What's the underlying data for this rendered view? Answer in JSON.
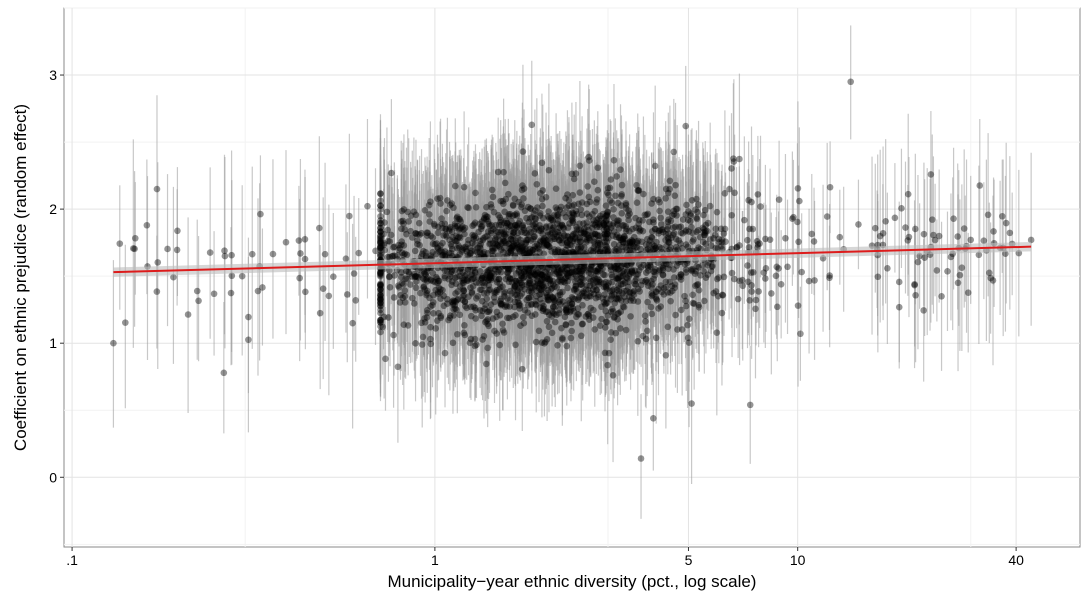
{
  "chart_data": {
    "type": "scatter",
    "title": "",
    "xlabel": "Municipality−year ethnic diversity (pct., log scale)",
    "ylabel": "Coefficient on ethnic prejudice (random effect)",
    "x_scale": "log",
    "xlim": [
      0.095,
      60
    ],
    "ylim": [
      -0.52,
      3.5
    ],
    "x_ticks": [
      {
        "value": 0.1,
        "label": ".1"
      },
      {
        "value": 1,
        "label": "1"
      },
      {
        "value": 5,
        "label": "5"
      },
      {
        "value": 10,
        "label": "10"
      },
      {
        "value": 40,
        "label": "40"
      }
    ],
    "y_ticks": [
      {
        "value": 0,
        "label": "0"
      },
      {
        "value": 1,
        "label": "1"
      },
      {
        "value": 2,
        "label": "2"
      },
      {
        "value": 3,
        "label": "3"
      }
    ],
    "grid": true,
    "legend": "none",
    "fit_line": {
      "x": [
        0.13,
        44
      ],
      "y": [
        1.53,
        1.72
      ],
      "color": "#dd1c1c",
      "band_halfwidth": 0.035
    },
    "point_color": "#000000",
    "errorbar_color": "#9a9a9a",
    "n_points": 2500,
    "notable_points": [
      {
        "x": 0.13,
        "y": 1.0,
        "lo": 0.37,
        "hi": 1.62
      },
      {
        "x": 3.7,
        "y": 0.14,
        "lo": -0.31,
        "hi": 0.62
      },
      {
        "x": 14,
        "y": 2.95,
        "lo": 2.52,
        "hi": 3.37
      },
      {
        "x": 4.0,
        "y": 0.44,
        "lo": 0.05,
        "hi": 0.85
      },
      {
        "x": 5.1,
        "y": 0.55,
        "lo": -0.05,
        "hi": 1.15
      },
      {
        "x": 7.4,
        "y": 0.54,
        "lo": 0.1,
        "hi": 0.98
      },
      {
        "x": 44,
        "y": 1.77,
        "lo": 1.13,
        "hi": 2.42
      }
    ]
  }
}
